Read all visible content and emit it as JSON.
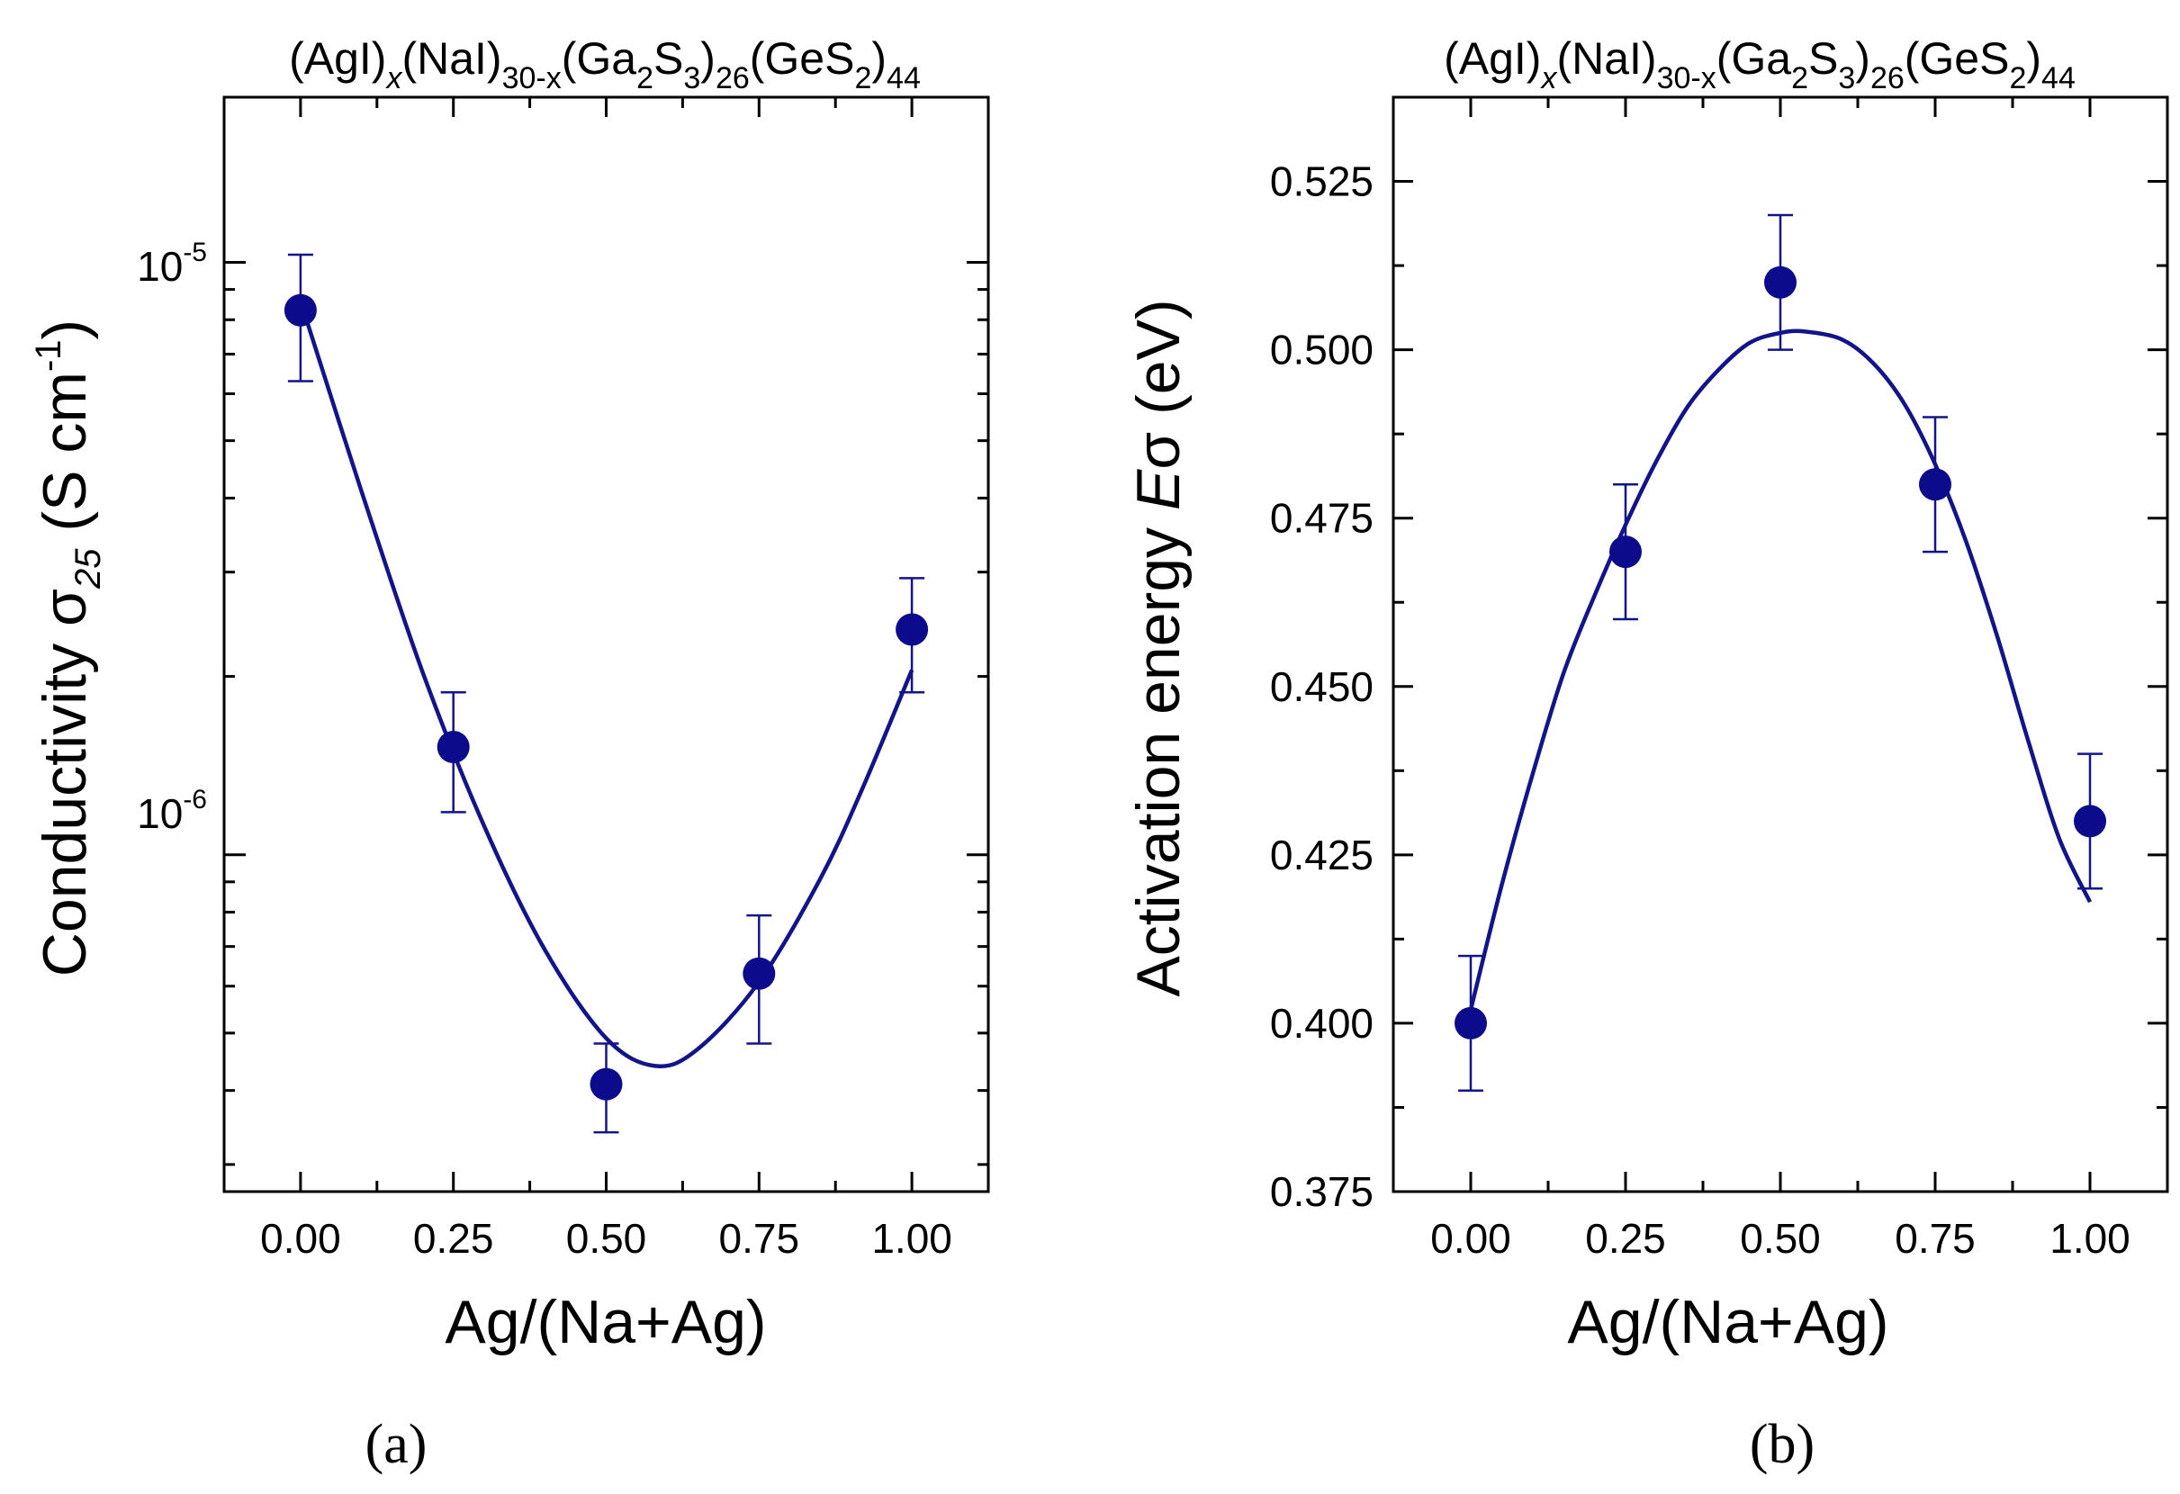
{
  "chart_data": [
    {
      "type": "scatter",
      "panel": "(a)",
      "title_parts": [
        "(AgI)",
        "x",
        "(NaI)",
        "30-x",
        "(Ga",
        "2",
        "S",
        "3",
        ")",
        "26",
        "(GeS",
        "2",
        ")",
        "44"
      ],
      "xlabel": "Ag/(Na+Ag)",
      "ylabel_main": "Conductivity ",
      "ylabel_symbol": "σ",
      "ylabel_sub": "25",
      "ylabel_unit": " (S cm",
      "ylabel_unit_sup": "-1",
      "ylabel_close": ")",
      "yscale": "log",
      "xlim": [
        -0.125,
        1.125
      ],
      "ylim": [
        2.7e-07,
        1.9e-05
      ],
      "xticks": [
        0.0,
        0.25,
        0.5,
        0.75,
        1.0
      ],
      "xtick_labels": [
        "0.00",
        "0.25",
        "0.50",
        "0.75",
        "1.00"
      ],
      "ytick_labels": [
        {
          "base": "10",
          "exp": "-5",
          "value": 1e-05
        },
        {
          "base": "10",
          "exp": "-6",
          "value": 1e-06
        }
      ],
      "series": [
        {
          "name": "data",
          "x": [
            0.0,
            0.25,
            0.5,
            0.75,
            1.0
          ],
          "y": [
            8.3e-06,
            1.52e-06,
            4.1e-07,
            6.3e-07,
            2.4e-06
          ],
          "err_low": [
            6.3e-06,
            1.18e-06,
            3.4e-07,
            4.8e-07,
            1.88e-06
          ],
          "err_high": [
            1.03e-05,
            1.88e-06,
            4.8e-07,
            7.9e-07,
            2.93e-06
          ]
        }
      ],
      "fit": {
        "x": [
          0.0,
          0.1,
          0.2,
          0.3,
          0.4,
          0.5,
          0.58,
          0.65,
          0.75,
          0.85,
          0.92,
          1.0
        ],
        "y": [
          8.6e-06,
          4.1e-06,
          2.03e-06,
          1.12e-06,
          6.9e-07,
          4.9e-07,
          4.4e-07,
          4.7e-07,
          6.1e-07,
          9.1e-07,
          1.3e-06,
          2.05e-06
        ]
      },
      "colors": {
        "marker": "#0b0b8c",
        "line": "#14148a"
      }
    },
    {
      "type": "scatter",
      "panel": "(b)",
      "title_parts": [
        "(AgI)",
        "x",
        "(NaI)",
        "30-x",
        "(Ga",
        "2",
        "S",
        "3",
        ")",
        "26",
        "(GeS",
        "2",
        ")",
        "44"
      ],
      "xlabel": "Ag/(Na+Ag)",
      "ylabel_main": "Activation energy ",
      "ylabel_symbol_italic": "E",
      "ylabel_symbol": "σ",
      "ylabel_unit": " (eV)",
      "yscale": "linear",
      "xlim": [
        -0.125,
        1.125
      ],
      "ylim": [
        0.375,
        0.5375
      ],
      "xticks": [
        0.0,
        0.25,
        0.5,
        0.75,
        1.0
      ],
      "xtick_labels": [
        "0.00",
        "0.25",
        "0.50",
        "0.75",
        "1.00"
      ],
      "yticks": [
        0.375,
        0.4,
        0.425,
        0.45,
        0.475,
        0.5,
        0.525
      ],
      "ytick_labels": [
        "0.375",
        "0.400",
        "0.425",
        "0.450",
        "0.475",
        "0.500",
        "0.525"
      ],
      "series": [
        {
          "name": "data",
          "x": [
            0.0,
            0.25,
            0.5,
            0.75,
            1.0
          ],
          "y": [
            0.4,
            0.47,
            0.51,
            0.48,
            0.43
          ],
          "err_low": [
            0.39,
            0.46,
            0.5,
            0.47,
            0.42
          ],
          "err_high": [
            0.41,
            0.48,
            0.52,
            0.49,
            0.44
          ]
        }
      ],
      "fit": {
        "x": [
          0.0,
          0.05,
          0.1,
          0.15,
          0.2,
          0.25,
          0.3,
          0.35,
          0.4,
          0.45,
          0.5,
          0.54,
          0.6,
          0.65,
          0.7,
          0.75,
          0.8,
          0.85,
          0.9,
          0.95,
          1.0
        ],
        "y": [
          0.402,
          0.4205,
          0.437,
          0.452,
          0.4635,
          0.474,
          0.4835,
          0.4915,
          0.497,
          0.501,
          0.5025,
          0.5027,
          0.5015,
          0.498,
          0.492,
          0.483,
          0.4715,
          0.4575,
          0.442,
          0.4275,
          0.418
        ]
      },
      "colors": {
        "marker": "#0b0b8c",
        "line": "#14148a"
      }
    }
  ]
}
